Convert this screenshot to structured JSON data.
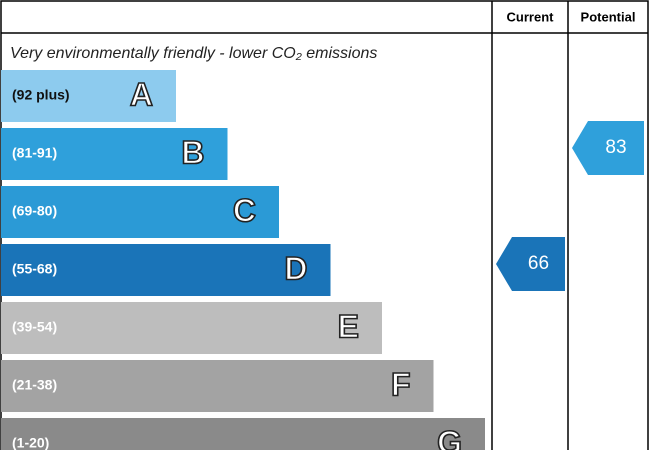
{
  "header": {
    "current": "Current",
    "potential": "Potential"
  },
  "title": "Very environmentally friendly - lower CO₂ emissions",
  "bands": [
    {
      "range": "(92 plus)",
      "letter": "A",
      "color": "#8dcbee"
    },
    {
      "range": "(81-91)",
      "letter": "B",
      "color": "#2fa0db"
    },
    {
      "range": "(69-80)",
      "letter": "C",
      "color": "#2b9ad6"
    },
    {
      "range": "(55-68)",
      "letter": "D",
      "color": "#1a74b8"
    },
    {
      "range": "(39-54)",
      "letter": "E",
      "color": "#bdbdbd"
    },
    {
      "range": "(21-38)",
      "letter": "F",
      "color": "#a3a3a3"
    },
    {
      "range": "(1-20)",
      "letter": "G",
      "color": "#8a8a8a"
    }
  ],
  "current": 66,
  "potential": 83
}
